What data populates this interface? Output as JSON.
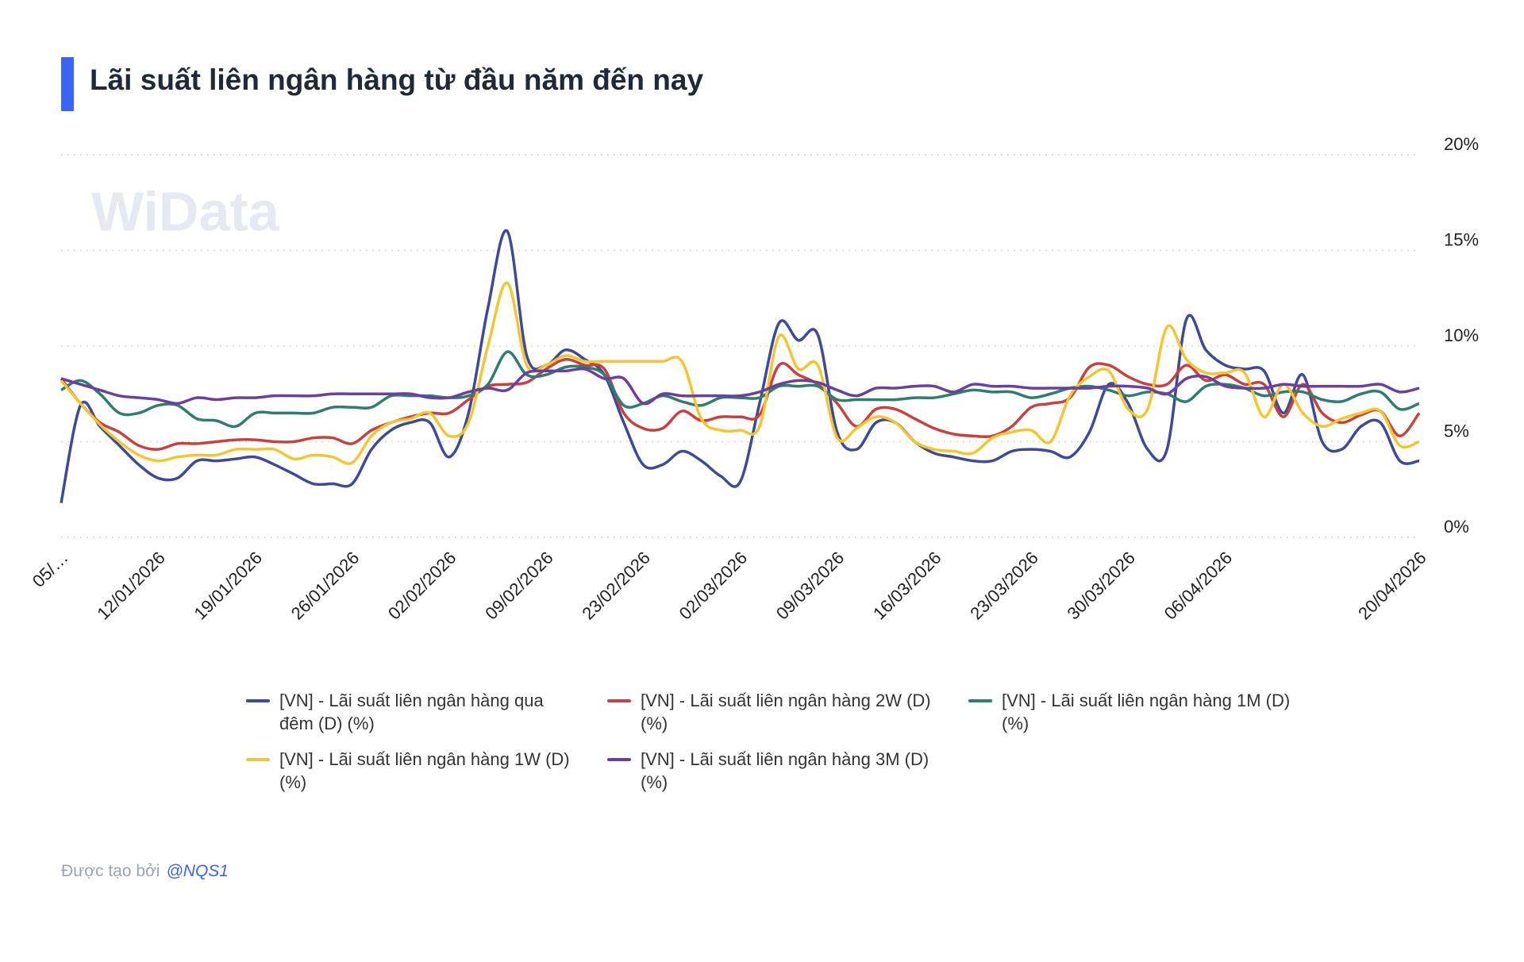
{
  "chart_data": {
    "type": "line",
    "title": "Lãi suất liên ngân hàng từ đầu năm đến nay",
    "watermark": "WiData",
    "categories": [
      "05/…",
      null,
      null,
      null,
      null,
      "12/01/2026",
      null,
      null,
      null,
      null,
      "19/01/2026",
      null,
      null,
      null,
      null,
      "26/01/2026",
      null,
      null,
      null,
      null,
      "02/02/2026",
      null,
      null,
      null,
      null,
      "09/02/2026",
      null,
      null,
      null,
      null,
      "23/02/2026",
      null,
      null,
      null,
      null,
      "02/03/2026",
      null,
      null,
      null,
      null,
      "09/03/2026",
      null,
      null,
      null,
      null,
      "16/03/2026",
      null,
      null,
      null,
      null,
      "23/03/2026",
      null,
      null,
      null,
      null,
      "30/03/2026",
      null,
      null,
      null,
      null,
      "06/04/2026",
      null,
      null,
      null,
      null,
      null,
      null,
      null,
      null,
      null,
      "20/04/2026"
    ],
    "ylim": [
      0,
      20
    ],
    "yticks": [
      {
        "value": 0,
        "label": "0%"
      },
      {
        "value": 5,
        "label": "5%"
      },
      {
        "value": 10,
        "label": "10%"
      },
      {
        "value": 15,
        "label": "15%"
      },
      {
        "value": 20,
        "label": "20%"
      }
    ],
    "grid": true,
    "series": [
      {
        "name": "[VN] - Lãi suất liên ngân hàng qua đêm (D) (%)",
        "color": "#3d4a9a",
        "values": [
          1.8,
          6.9,
          5.8,
          4.8,
          3.8,
          3.1,
          3.1,
          4.0,
          4.0,
          4.1,
          4.2,
          3.8,
          3.3,
          2.8,
          2.8,
          2.8,
          4.6,
          5.6,
          6.0,
          6.0,
          4.2,
          6.5,
          12.0,
          16.0,
          9.5,
          9.0,
          9.8,
          9.3,
          8.5,
          6.0,
          3.8,
          3.8,
          4.5,
          4.0,
          3.2,
          2.9,
          7.0,
          11.2,
          10.3,
          10.6,
          5.5,
          4.6,
          6.0,
          6.0,
          5.0,
          4.4,
          4.2,
          4.0,
          4.0,
          4.5,
          4.6,
          4.5,
          4.2,
          5.5,
          8.0,
          7.0,
          4.6,
          4.6,
          11.4,
          9.8,
          9.0,
          8.8,
          8.7,
          6.5,
          8.5,
          5.0,
          4.6,
          5.8,
          6.0,
          4.0,
          4.0
        ]
      },
      {
        "name": "[VN] - Lãi suất liên ngân hàng 2W (D) (%)",
        "color": "#c8413f",
        "values": [
          8.3,
          7.0,
          6.0,
          5.5,
          4.8,
          4.6,
          4.9,
          4.9,
          5.0,
          5.1,
          5.1,
          5.0,
          5.0,
          5.2,
          5.2,
          4.9,
          5.6,
          6.0,
          6.3,
          6.5,
          6.5,
          7.2,
          7.9,
          8.0,
          8.1,
          8.8,
          9.3,
          9.0,
          8.8,
          6.5,
          5.7,
          5.7,
          6.6,
          6.1,
          6.3,
          6.3,
          6.4,
          9.0,
          8.5,
          8.0,
          7.0,
          5.8,
          6.7,
          6.7,
          6.2,
          5.7,
          5.4,
          5.3,
          5.3,
          5.8,
          6.8,
          7.0,
          7.3,
          8.9,
          9.0,
          8.4,
          8.0,
          8.0,
          9.0,
          8.2,
          8.5,
          8.0,
          8.0,
          6.3,
          8.0,
          6.5,
          6.0,
          6.4,
          6.6,
          5.3,
          6.5
        ]
      },
      {
        "name": "[VN] - Lãi suất liên ngân hàng 1M (D) (%)",
        "color": "#2e7d6f",
        "values": [
          7.7,
          8.2,
          7.5,
          6.5,
          6.5,
          6.9,
          6.9,
          6.2,
          6.1,
          5.8,
          6.5,
          6.5,
          6.5,
          6.5,
          6.8,
          6.8,
          6.8,
          7.4,
          7.4,
          7.4,
          7.3,
          7.4,
          8.0,
          9.7,
          8.5,
          8.5,
          8.9,
          8.9,
          8.5,
          6.9,
          7.0,
          7.4,
          7.1,
          6.9,
          7.3,
          7.3,
          7.3,
          7.9,
          7.9,
          7.9,
          7.2,
          7.2,
          7.2,
          7.2,
          7.3,
          7.3,
          7.5,
          7.7,
          7.6,
          7.6,
          7.3,
          7.5,
          7.8,
          7.9,
          7.7,
          7.4,
          7.6,
          7.5,
          7.1,
          7.9,
          8.0,
          7.8,
          7.4,
          7.6,
          7.6,
          7.2,
          7.1,
          7.5,
          7.6,
          6.7,
          7.0
        ]
      },
      {
        "name": "[VN] - Lãi suất liên ngân hàng 1W (D) (%)",
        "color": "#f5c531",
        "values": [
          8.2,
          7.0,
          5.9,
          5.0,
          4.3,
          4.0,
          4.2,
          4.3,
          4.3,
          4.6,
          4.6,
          4.6,
          4.1,
          4.3,
          4.2,
          3.9,
          5.3,
          6.0,
          6.2,
          6.5,
          5.3,
          6.0,
          10.0,
          13.3,
          9.0,
          9.0,
          9.5,
          9.2,
          9.2,
          9.2,
          9.2,
          9.2,
          9.2,
          6.2,
          5.6,
          5.6,
          5.8,
          10.5,
          8.8,
          9.0,
          5.2,
          5.7,
          6.3,
          6.0,
          5.0,
          4.6,
          4.5,
          4.4,
          5.2,
          5.5,
          5.6,
          5.0,
          7.4,
          8.4,
          8.7,
          6.7,
          6.7,
          11.0,
          9.3,
          8.6,
          8.6,
          8.6,
          6.3,
          8.0,
          6.5,
          5.8,
          6.2,
          6.5,
          6.6,
          4.8,
          5.0
        ]
      },
      {
        "name": "[VN] - Lãi suất liên ngân hàng 3M (D) (%)",
        "color": "#6b3fa0",
        "values": [
          8.3,
          8.0,
          7.7,
          7.4,
          7.3,
          7.2,
          7.0,
          7.3,
          7.2,
          7.3,
          7.3,
          7.4,
          7.4,
          7.4,
          7.5,
          7.5,
          7.5,
          7.5,
          7.5,
          7.3,
          7.3,
          7.6,
          7.8,
          7.7,
          8.6,
          8.7,
          8.7,
          8.8,
          8.3,
          8.3,
          7.0,
          7.5,
          7.4,
          7.4,
          7.4,
          7.4,
          7.6,
          8.0,
          8.2,
          8.1,
          7.7,
          7.4,
          7.8,
          7.8,
          7.9,
          7.9,
          7.6,
          8.0,
          7.9,
          7.9,
          7.8,
          7.8,
          7.8,
          7.8,
          7.9,
          7.9,
          7.8,
          7.5,
          8.3,
          8.4,
          7.9,
          7.8,
          7.8,
          8.0,
          7.9,
          7.9,
          7.9,
          7.9,
          8.0,
          7.6,
          7.8
        ]
      }
    ]
  },
  "footer": {
    "text": "Được tạo bởi",
    "author": "@NQS1"
  }
}
